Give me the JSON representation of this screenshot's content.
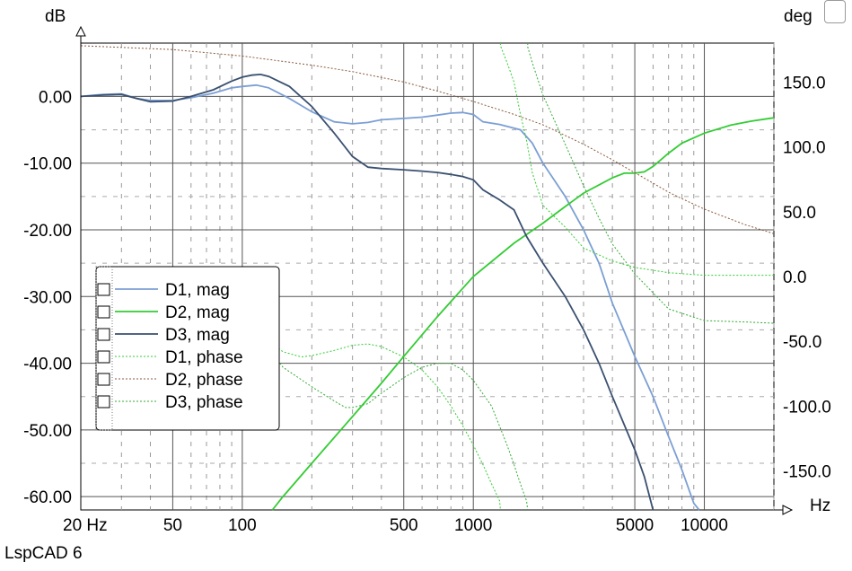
{
  "app": {
    "name": "LspCAD 6"
  },
  "chart_data": {
    "type": "line",
    "y_left_label": "dB",
    "y_right_label": "deg",
    "x_unit": "Hz",
    "x_scale": "log",
    "xlim": [
      20,
      20000
    ],
    "ylim_left": [
      -62,
      8
    ],
    "ylim_right": [
      -180,
      180
    ],
    "x_tick_labels": [
      {
        "x": 20,
        "label": "20 Hz"
      },
      {
        "x": 50,
        "label": "50"
      },
      {
        "x": 100,
        "label": "100"
      },
      {
        "x": 500,
        "label": "500"
      },
      {
        "x": 1000,
        "label": "1000"
      },
      {
        "x": 5000,
        "label": "5000"
      },
      {
        "x": 10000,
        "label": "10000"
      }
    ],
    "y_left_ticks": [
      {
        "v": 0,
        "label": "0.00"
      },
      {
        "v": -10,
        "label": "-10.00"
      },
      {
        "v": -20,
        "label": "-20.00"
      },
      {
        "v": -30,
        "label": "-30.00"
      },
      {
        "v": -40,
        "label": "-40.00"
      },
      {
        "v": -50,
        "label": "-50.00"
      },
      {
        "v": -60,
        "label": "-60.00"
      }
    ],
    "y_right_ticks": [
      {
        "v": 150,
        "label": "150.0"
      },
      {
        "v": 100,
        "label": "100.0"
      },
      {
        "v": 50,
        "label": "50.0"
      },
      {
        "v": 0,
        "label": "0.0"
      },
      {
        "v": -50,
        "label": "-50.0"
      },
      {
        "v": -100,
        "label": "-100.0"
      },
      {
        "v": -150,
        "label": "-150.0"
      }
    ],
    "grid": true,
    "legend": "left, lower-middle",
    "series": [
      {
        "name": "D1, mag",
        "axis": "left",
        "style": "solid",
        "color": "#7b9fd4",
        "points": [
          [
            20,
            0
          ],
          [
            25,
            0.3
          ],
          [
            30,
            0.4
          ],
          [
            35,
            -0.3
          ],
          [
            40,
            -0.6
          ],
          [
            50,
            -0.6
          ],
          [
            60,
            -0.2
          ],
          [
            75,
            0.5
          ],
          [
            90,
            1.3
          ],
          [
            100,
            1.5
          ],
          [
            115,
            1.7
          ],
          [
            130,
            1.3
          ],
          [
            160,
            -0.3
          ],
          [
            200,
            -2.3
          ],
          [
            250,
            -3.8
          ],
          [
            300,
            -4.1
          ],
          [
            350,
            -3.9
          ],
          [
            400,
            -3.5
          ],
          [
            500,
            -3.3
          ],
          [
            600,
            -3.1
          ],
          [
            700,
            -2.8
          ],
          [
            800,
            -2.5
          ],
          [
            900,
            -2.4
          ],
          [
            1000,
            -2.7
          ],
          [
            1100,
            -3.8
          ],
          [
            1300,
            -4.2
          ],
          [
            1600,
            -5
          ],
          [
            1800,
            -7
          ],
          [
            2000,
            -10
          ],
          [
            2500,
            -15
          ],
          [
            3000,
            -20
          ],
          [
            3500,
            -25
          ],
          [
            4000,
            -31
          ],
          [
            5000,
            -39
          ],
          [
            6000,
            -45
          ],
          [
            7000,
            -51
          ],
          [
            8000,
            -56
          ],
          [
            9000,
            -61
          ],
          [
            9500,
            -63
          ]
        ]
      },
      {
        "name": "D2, mag",
        "axis": "left",
        "style": "solid",
        "color": "#33cc33",
        "points": [
          [
            135,
            -62
          ],
          [
            150,
            -60
          ],
          [
            200,
            -55
          ],
          [
            300,
            -48
          ],
          [
            400,
            -43
          ],
          [
            500,
            -39
          ],
          [
            700,
            -33
          ],
          [
            1000,
            -27
          ],
          [
            1500,
            -22
          ],
          [
            2000,
            -19
          ],
          [
            2500,
            -16.5
          ],
          [
            3000,
            -14.5
          ],
          [
            4000,
            -12.2
          ],
          [
            4500,
            -11.5
          ],
          [
            5000,
            -11.5
          ],
          [
            5500,
            -11.3
          ],
          [
            6000,
            -10.5
          ],
          [
            7000,
            -8.5
          ],
          [
            8000,
            -7
          ],
          [
            10000,
            -5.5
          ],
          [
            13000,
            -4.3
          ],
          [
            16000,
            -3.7
          ],
          [
            20000,
            -3.2
          ]
        ]
      },
      {
        "name": "D3, mag",
        "axis": "left",
        "style": "solid",
        "color": "#3a5070",
        "points": [
          [
            20,
            0
          ],
          [
            25,
            0.2
          ],
          [
            30,
            0.3
          ],
          [
            35,
            -0.3
          ],
          [
            40,
            -0.8
          ],
          [
            50,
            -0.7
          ],
          [
            60,
            0
          ],
          [
            75,
            1
          ],
          [
            90,
            2.3
          ],
          [
            100,
            2.9
          ],
          [
            110,
            3.2
          ],
          [
            120,
            3.3
          ],
          [
            130,
            3
          ],
          [
            160,
            1.5
          ],
          [
            200,
            -1.5
          ],
          [
            250,
            -5.5
          ],
          [
            300,
            -9
          ],
          [
            350,
            -10.6
          ],
          [
            400,
            -10.8
          ],
          [
            500,
            -11
          ],
          [
            600,
            -11.2
          ],
          [
            700,
            -11.4
          ],
          [
            800,
            -11.7
          ],
          [
            900,
            -12
          ],
          [
            1000,
            -12.5
          ],
          [
            1100,
            -14
          ],
          [
            1300,
            -15.5
          ],
          [
            1500,
            -17
          ],
          [
            1700,
            -21
          ],
          [
            2000,
            -25
          ],
          [
            2500,
            -30
          ],
          [
            3000,
            -35
          ],
          [
            3500,
            -40
          ],
          [
            4000,
            -45
          ],
          [
            5000,
            -53
          ],
          [
            5500,
            -57
          ],
          [
            6000,
            -62
          ]
        ]
      },
      {
        "name": "D1, phase",
        "axis": "right",
        "style": "dotted",
        "color": "#33cc33",
        "points": [
          [
            95,
            -8
          ],
          [
            100,
            -20
          ],
          [
            110,
            -30
          ],
          [
            120,
            -40
          ],
          [
            130,
            -50
          ],
          [
            150,
            -58
          ],
          [
            180,
            -62
          ],
          [
            200,
            -61
          ],
          [
            250,
            -57
          ],
          [
            300,
            -53
          ],
          [
            350,
            -52
          ],
          [
            400,
            -54
          ],
          [
            500,
            -62
          ],
          [
            600,
            -72
          ],
          [
            700,
            -85
          ],
          [
            800,
            -100
          ],
          [
            900,
            -115
          ],
          [
            1000,
            -130
          ],
          [
            1100,
            -145
          ],
          [
            1200,
            -160
          ],
          [
            1300,
            -173
          ],
          [
            1310,
            178
          ],
          [
            1400,
            165
          ],
          [
            1500,
            150
          ],
          [
            1600,
            125
          ],
          [
            1700,
            105
          ],
          [
            1800,
            80
          ],
          [
            2000,
            55
          ],
          [
            2500,
            38
          ],
          [
            3000,
            22
          ],
          [
            4000,
            12
          ],
          [
            5000,
            7
          ],
          [
            7000,
            3
          ],
          [
            10000,
            1
          ],
          [
            20000,
            1
          ]
        ]
      },
      {
        "name": "D2, phase",
        "axis": "right",
        "style": "dotted",
        "color": "#8b5a3c",
        "points": [
          [
            20,
            178
          ],
          [
            50,
            175
          ],
          [
            100,
            170
          ],
          [
            200,
            163
          ],
          [
            300,
            158
          ],
          [
            500,
            150
          ],
          [
            700,
            143
          ],
          [
            1000,
            135
          ],
          [
            1500,
            125
          ],
          [
            2000,
            117
          ],
          [
            3000,
            102
          ],
          [
            4000,
            90
          ],
          [
            5000,
            80
          ],
          [
            6000,
            72
          ],
          [
            7000,
            65
          ],
          [
            8000,
            60
          ],
          [
            10000,
            52
          ],
          [
            15000,
            40
          ],
          [
            20000,
            33
          ]
        ]
      },
      {
        "name": "D3, phase",
        "axis": "right",
        "style": "dotted",
        "color": "#33aa33",
        "points": [
          [
            100,
            -30
          ],
          [
            115,
            -40
          ],
          [
            130,
            -55
          ],
          [
            150,
            -70
          ],
          [
            200,
            -85
          ],
          [
            250,
            -96
          ],
          [
            280,
            -101
          ],
          [
            300,
            -101
          ],
          [
            350,
            -98
          ],
          [
            400,
            -90
          ],
          [
            500,
            -78
          ],
          [
            600,
            -70
          ],
          [
            700,
            -67
          ],
          [
            800,
            -67
          ],
          [
            900,
            -72
          ],
          [
            1000,
            -80
          ],
          [
            1200,
            -100
          ],
          [
            1400,
            -130
          ],
          [
            1500,
            -145
          ],
          [
            1600,
            -160
          ],
          [
            1700,
            -173
          ],
          [
            1720,
            177
          ],
          [
            1800,
            165
          ],
          [
            2000,
            140
          ],
          [
            2500,
            102
          ],
          [
            3000,
            70
          ],
          [
            3500,
            45
          ],
          [
            4000,
            25
          ],
          [
            5000,
            2
          ],
          [
            7000,
            -25
          ],
          [
            10000,
            -34
          ],
          [
            15000,
            -35
          ],
          [
            20000,
            -36
          ]
        ]
      }
    ]
  }
}
